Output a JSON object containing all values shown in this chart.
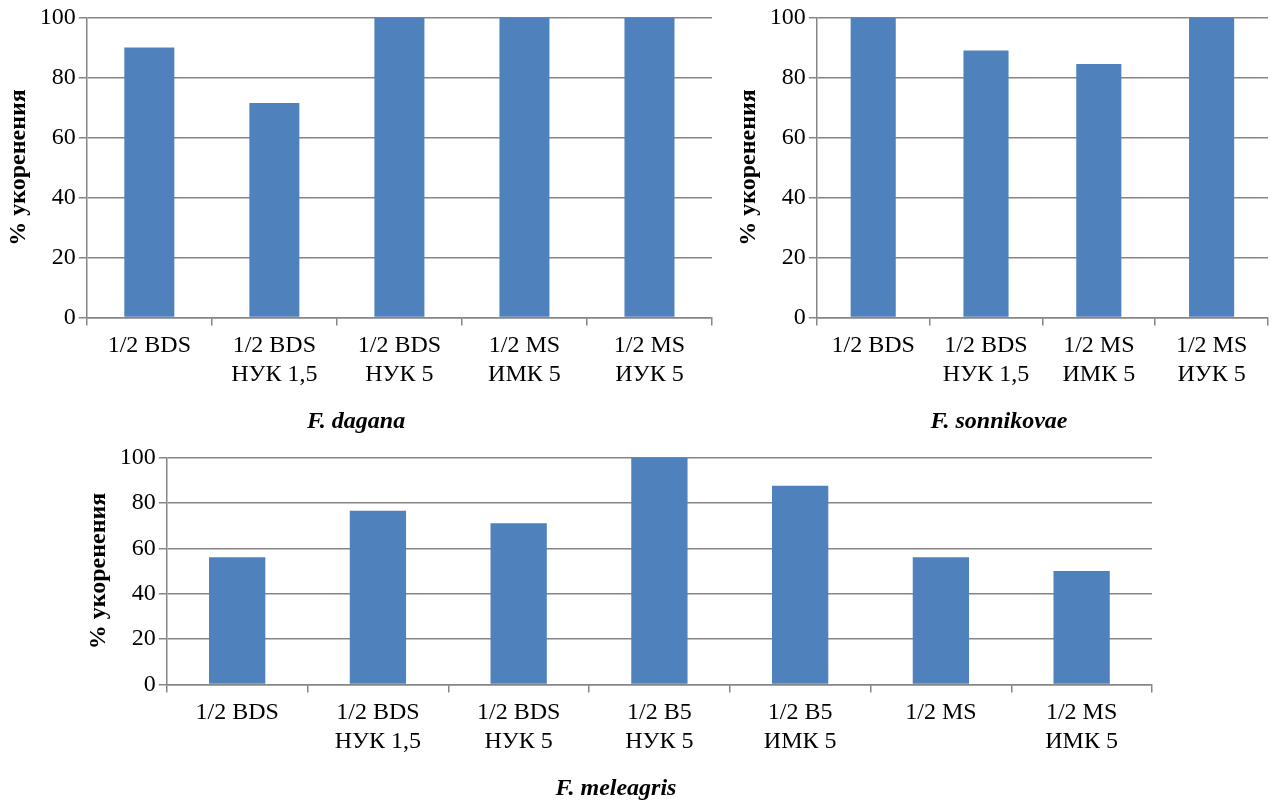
{
  "chart_data": [
    {
      "type": "bar",
      "title": "F. dagana",
      "ylabel": "% укоренения",
      "categories": [
        "1/2 BDS",
        "1/2 BDS\nНУК 1,5",
        "1/2 BDS\nНУК 5",
        "1/2 MS\nИМК 5",
        "1/2 MS\nИУК 5"
      ],
      "values": [
        90,
        71.5,
        100,
        100,
        100
      ],
      "color": "#4f81bd",
      "ylim": [
        0,
        100
      ],
      "yticks": [
        0,
        20,
        40,
        60,
        80,
        100
      ],
      "grid": "y"
    },
    {
      "type": "bar",
      "title": "F. sonnikovae",
      "ylabel": "% укоренения",
      "categories": [
        "1/2 BDS",
        "1/2 BDS\nНУК 1,5",
        "1/2 MS\nИМК 5",
        "1/2 MS\nИУК 5"
      ],
      "values": [
        100,
        89,
        84.5,
        100
      ],
      "color": "#4f81bd",
      "ylim": [
        0,
        100
      ],
      "yticks": [
        0,
        20,
        40,
        60,
        80,
        100
      ],
      "grid": "y"
    },
    {
      "type": "bar",
      "title": "F. meleagris",
      "ylabel": "% укоренения",
      "categories": [
        "1/2 BDS",
        "1/2 BDS\nНУК 1,5",
        "1/2 BDS\nНУК 5",
        "1/2 B5\nНУК 5",
        "1/2 B5\nИМК 5",
        "1/2 MS",
        "1/2 MS\nИМК 5"
      ],
      "values": [
        56,
        76.5,
        71,
        100,
        87.5,
        56,
        50
      ],
      "color": "#4f81bd",
      "ylim": [
        0,
        100
      ],
      "yticks": [
        0,
        20,
        40,
        60,
        80,
        100
      ],
      "grid": "y"
    }
  ]
}
